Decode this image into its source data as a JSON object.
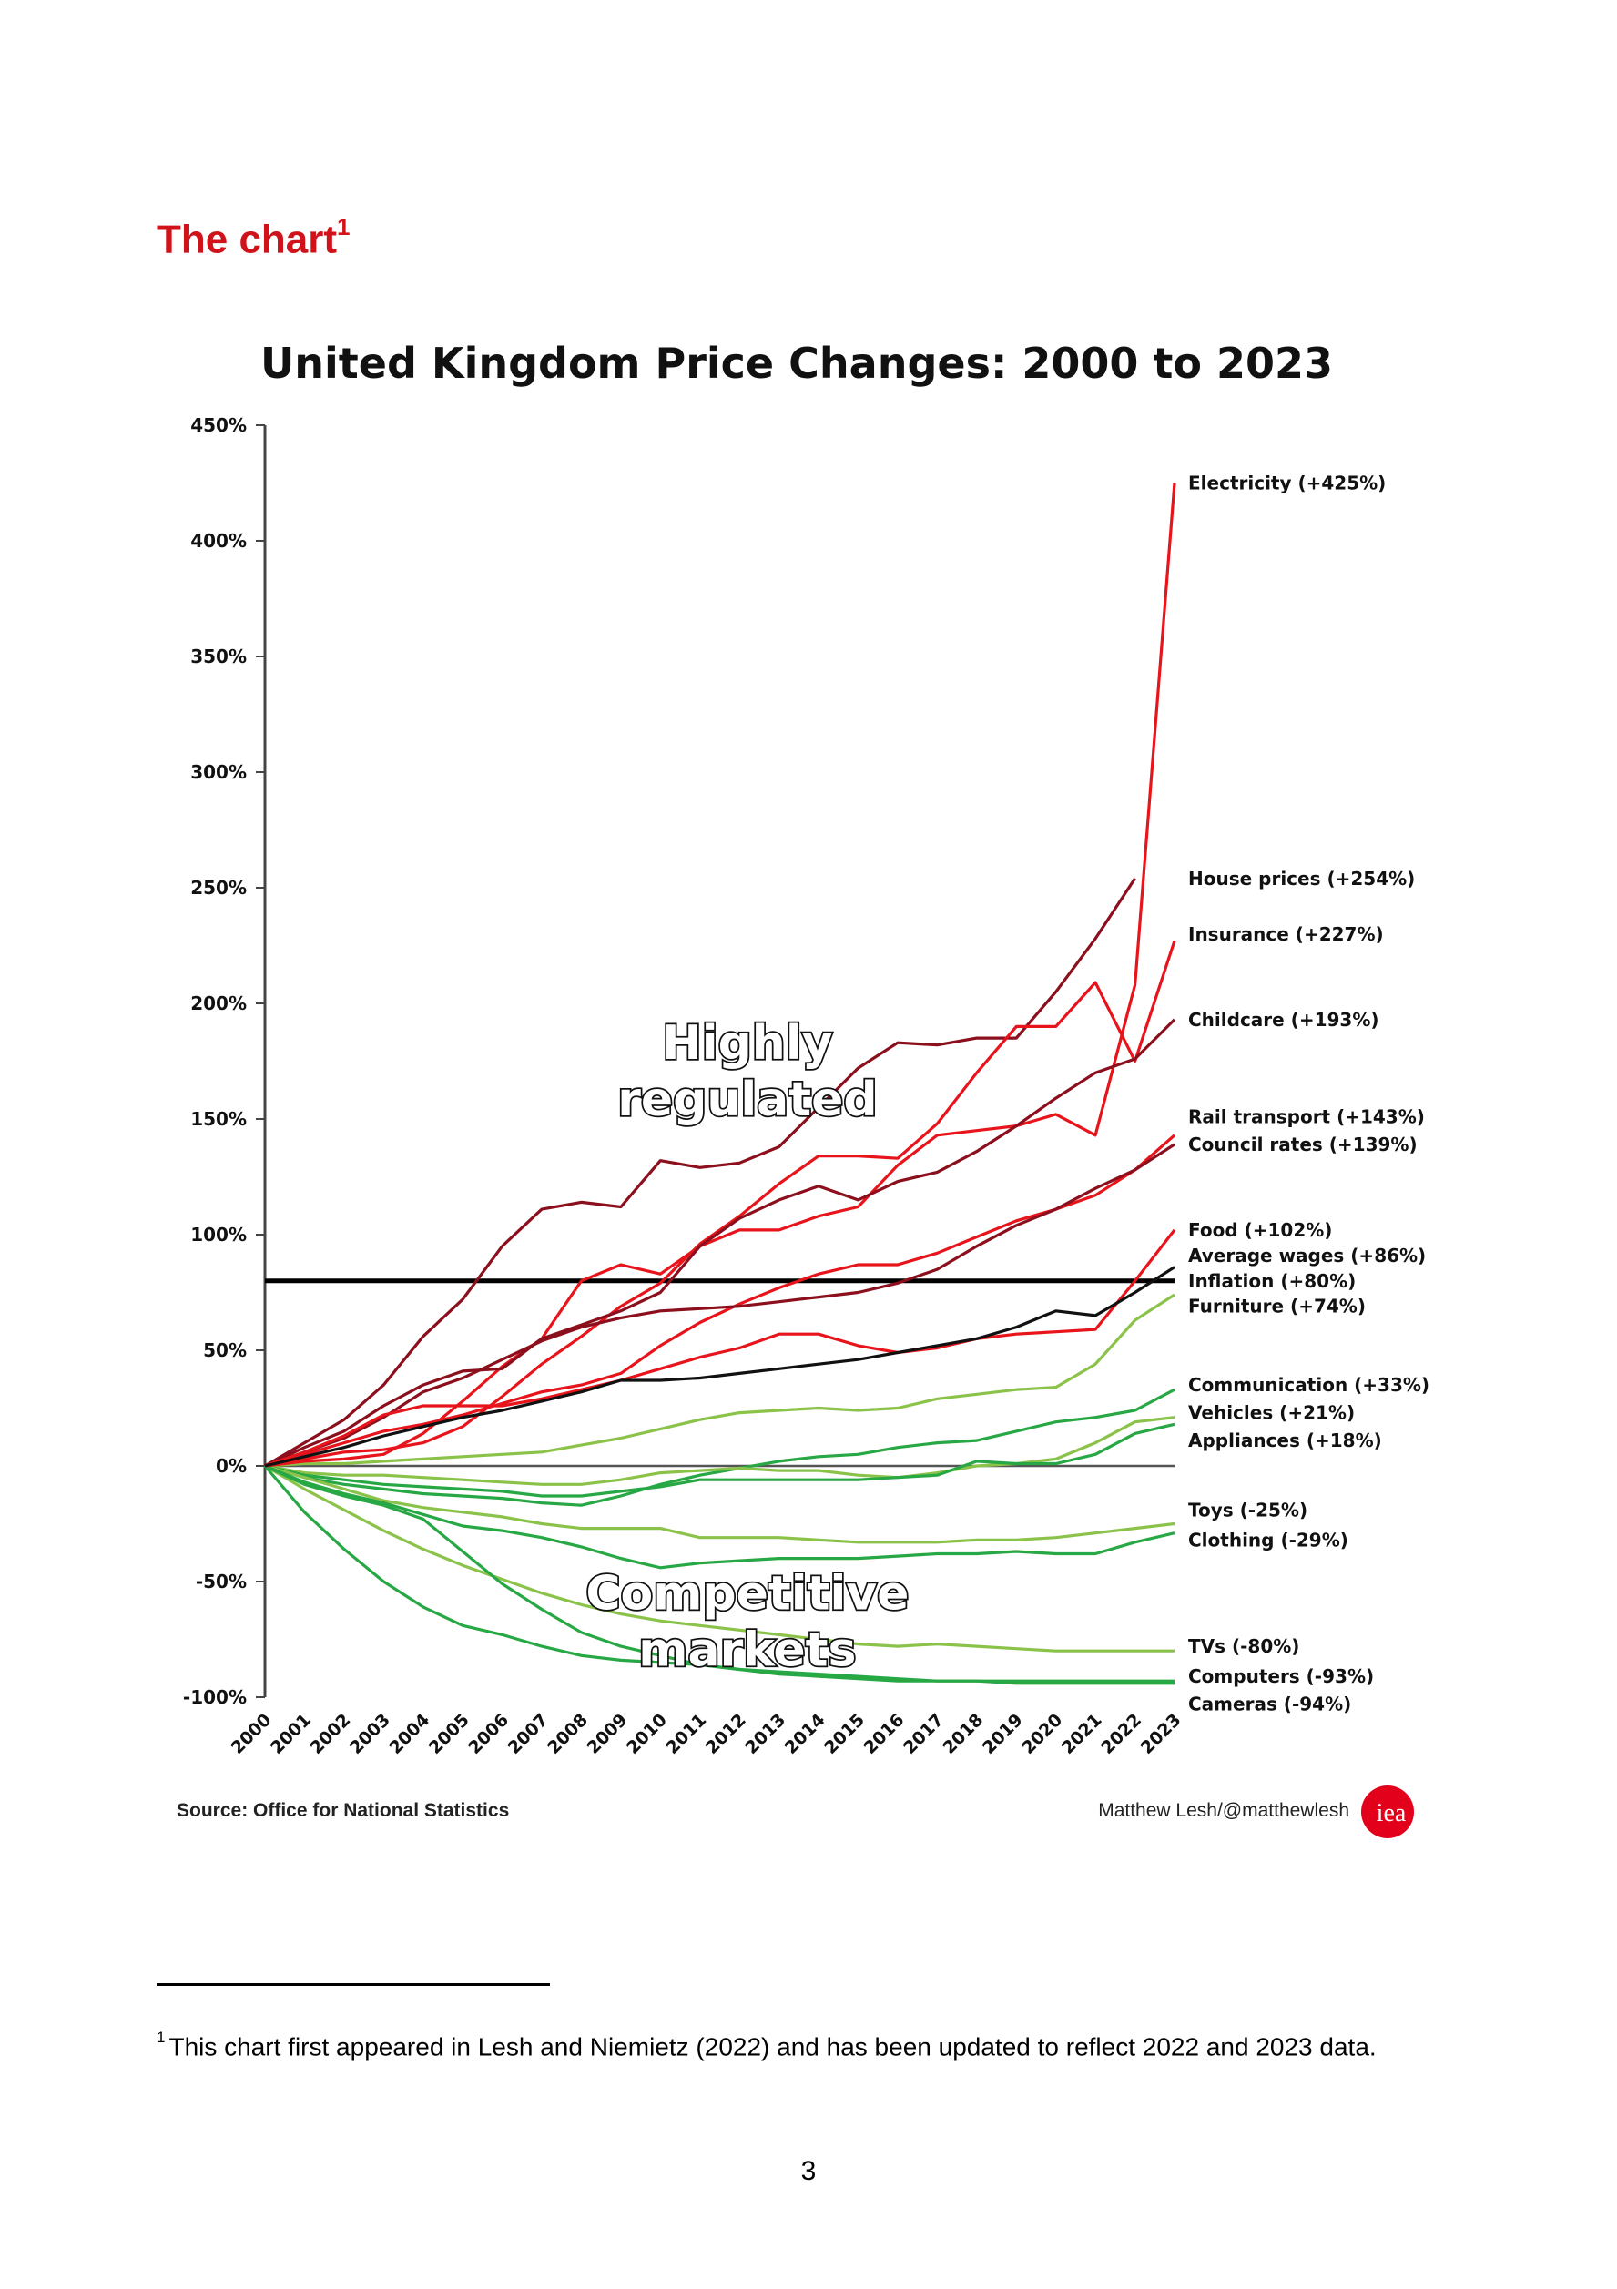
{
  "page": {
    "heading": "The chart",
    "heading_footnote_ref": "1",
    "footnote_ref": "1",
    "footnote_text": "This chart first appeared in Lesh and Niemietz (2022) and has been updated to reflect 2022 and 2023 data.",
    "page_number": "3"
  },
  "chart_data": {
    "type": "line",
    "title": "United Kingdom Price Changes: 2000 to 2023",
    "xlabel": "",
    "ylabel": "",
    "x": [
      2000,
      2001,
      2002,
      2003,
      2004,
      2005,
      2006,
      2007,
      2008,
      2009,
      2010,
      2011,
      2012,
      2013,
      2014,
      2015,
      2016,
      2017,
      2018,
      2019,
      2020,
      2021,
      2022,
      2023
    ],
    "x_tick_labels": [
      "2000",
      "2001",
      "2002",
      "2003",
      "2004",
      "2005",
      "2006",
      "2007",
      "2008",
      "2009",
      "2010",
      "2011",
      "2012",
      "2013",
      "2014",
      "2015",
      "2016",
      "2017",
      "2018",
      "2019",
      "2020",
      "2021",
      "2022",
      "2023"
    ],
    "ylim": [
      -100,
      450
    ],
    "y_ticks": [
      -100,
      -50,
      0,
      50,
      100,
      150,
      200,
      250,
      300,
      350,
      400,
      450
    ],
    "y_tick_labels": [
      "-100%",
      "-50%",
      "0%",
      "50%",
      "100%",
      "150%",
      "200%",
      "250%",
      "300%",
      "350%",
      "400%",
      "450%"
    ],
    "grid": false,
    "reference_lines": [
      {
        "name": "Inflation",
        "value": 80,
        "color": "#000000"
      },
      {
        "name": "Zero",
        "value": 0,
        "color": "#555555"
      }
    ],
    "annotations": [
      {
        "text_line1": "Highly",
        "text_line2": "regulated",
        "x": 2012.2,
        "y": 176
      },
      {
        "text_line1": "Competitive",
        "text_line2": "markets",
        "x": 2012.2,
        "y": -62
      }
    ],
    "source": "Source: Office for National Statistics",
    "credit": "Matthew Lesh/@matthewlesh",
    "logo_text": "iea",
    "logo_color": "#e3001b",
    "series": [
      {
        "name": "Electricity",
        "label": "Electricity (+425%)",
        "color": "#e8141c",
        "values": [
          0,
          2,
          3,
          5,
          14,
          28,
          43,
          55,
          80,
          87,
          83,
          95,
          102,
          102,
          108,
          112,
          130,
          143,
          145,
          147,
          152,
          143,
          208,
          425
        ]
      },
      {
        "name": "House prices",
        "label": "House prices (+254%)",
        "color": "#8b0f1c",
        "values": [
          0,
          10,
          20,
          35,
          56,
          72,
          95,
          111,
          114,
          112,
          132,
          129,
          131,
          138,
          155,
          172,
          183,
          182,
          185,
          185,
          205,
          228,
          254,
          null
        ]
      },
      {
        "name": "Insurance",
        "label": "Insurance (+227%)",
        "color": "#e8141c",
        "values": [
          0,
          3,
          6,
          7,
          10,
          17,
          30,
          44,
          56,
          69,
          79,
          96,
          108,
          122,
          134,
          134,
          133,
          148,
          170,
          190,
          190,
          209,
          175,
          227
        ]
      },
      {
        "name": "Childcare",
        "label": "Childcare (+193%)",
        "color": "#8b0f1c",
        "values": [
          0,
          8,
          15,
          26,
          35,
          41,
          42,
          55,
          61,
          67,
          75,
          95,
          107,
          115,
          121,
          115,
          123,
          127,
          136,
          147,
          159,
          170,
          176,
          193
        ]
      },
      {
        "name": "Rail transport",
        "label": "Rail transport (+143%)",
        "color": "#e8141c",
        "values": [
          0,
          5,
          10,
          15,
          18,
          22,
          27,
          32,
          35,
          40,
          52,
          62,
          70,
          77,
          83,
          87,
          87,
          92,
          99,
          106,
          111,
          117,
          128,
          143
        ]
      },
      {
        "name": "Council rates",
        "label": "Council rates (+139%)",
        "color": "#8b0f1c",
        "values": [
          0,
          6,
          12,
          21,
          32,
          38,
          46,
          54,
          60,
          64,
          67,
          68,
          69,
          71,
          73,
          75,
          79,
          85,
          95,
          104,
          111,
          120,
          128,
          139
        ]
      },
      {
        "name": "Food",
        "label": "Food (+102%)",
        "color": "#e8141c",
        "values": [
          0,
          6,
          13,
          22,
          26,
          26,
          26,
          29,
          33,
          37,
          42,
          47,
          51,
          57,
          57,
          52,
          49,
          51,
          55,
          57,
          58,
          59,
          80,
          102
        ]
      },
      {
        "name": "Average wages",
        "label": "Average wages (+86%)",
        "color": "#111111",
        "values": [
          0,
          4,
          8,
          13,
          17,
          21,
          24,
          28,
          32,
          37,
          37,
          38,
          40,
          42,
          44,
          46,
          49,
          52,
          55,
          60,
          67,
          65,
          75,
          86
        ]
      },
      {
        "name": "Furniture",
        "label": "Furniture (+74%)",
        "color": "#8bc34a",
        "values": [
          0,
          1,
          1,
          2,
          3,
          4,
          5,
          6,
          9,
          12,
          16,
          20,
          23,
          24,
          25,
          24,
          25,
          29,
          31,
          33,
          34,
          44,
          63,
          74
        ]
      },
      {
        "name": "Communication",
        "label": "Communication (+33%)",
        "color": "#27a844",
        "values": [
          0,
          -5,
          -8,
          -10,
          -12,
          -13,
          -14,
          -16,
          -17,
          -13,
          -8,
          -4,
          -1,
          2,
          4,
          5,
          8,
          10,
          11,
          15,
          19,
          21,
          24,
          33
        ]
      },
      {
        "name": "Vehicles",
        "label": "Vehicles (+21%)",
        "color": "#8bc34a",
        "values": [
          0,
          -3,
          -4,
          -4,
          -5,
          -6,
          -7,
          -8,
          -8,
          -6,
          -3,
          -2,
          -1,
          -2,
          -2,
          -4,
          -5,
          -3,
          0,
          1,
          3,
          10,
          19,
          21
        ]
      },
      {
        "name": "Appliances",
        "label": "Appliances (+18%)",
        "color": "#27a844",
        "values": [
          0,
          -4,
          -6,
          -8,
          -9,
          -10,
          -11,
          -13,
          -13,
          -11,
          -9,
          -6,
          -6,
          -6,
          -6,
          -6,
          -5,
          -4,
          2,
          1,
          1,
          5,
          14,
          18
        ]
      },
      {
        "name": "Toys",
        "label": "Toys (-25%)",
        "color": "#8bc34a",
        "values": [
          0,
          -5,
          -10,
          -15,
          -18,
          -20,
          -22,
          -25,
          -27,
          -27,
          -27,
          -31,
          -31,
          -31,
          -32,
          -33,
          -33,
          -33,
          -32,
          -32,
          -31,
          -29,
          -27,
          -25
        ]
      },
      {
        "name": "Clothing",
        "label": "Clothing (-29%)",
        "color": "#27a844",
        "values": [
          0,
          -7,
          -12,
          -16,
          -21,
          -26,
          -28,
          -31,
          -35,
          -40,
          -44,
          -42,
          -41,
          -40,
          -40,
          -40,
          -39,
          -38,
          -38,
          -37,
          -38,
          -38,
          -33,
          -29
        ]
      },
      {
        "name": "TVs",
        "label": "TVs (-80%)",
        "color": "#8bc34a",
        "values": [
          0,
          -10,
          -19,
          -28,
          -36,
          -43,
          -49,
          -55,
          -60,
          -64,
          -67,
          -69,
          -71,
          -73,
          -75,
          -77,
          -78,
          -77,
          -78,
          -79,
          -80,
          -80,
          -80,
          -80
        ]
      },
      {
        "name": "Computers",
        "label": "Computers (-93%)",
        "color": "#27a844",
        "values": [
          0,
          -8,
          -13,
          -17,
          -23,
          -37,
          -51,
          -62,
          -72,
          -78,
          -82,
          -86,
          -88,
          -90,
          -91,
          -92,
          -93,
          -93,
          -93,
          -93,
          -93,
          -93,
          -93,
          -93
        ]
      },
      {
        "name": "Cameras",
        "label": "Cameras (-94%)",
        "color": "#27a844",
        "values": [
          0,
          -20,
          -36,
          -50,
          -61,
          -69,
          -73,
          -78,
          -82,
          -84,
          -85,
          -86,
          -88,
          -89,
          -90,
          -91,
          -92,
          -93,
          -93,
          -94,
          -94,
          -94,
          -94,
          -94
        ]
      }
    ],
    "label_order_y": {
      "Electricity": 425,
      "House prices": 254,
      "Insurance": 230,
      "Childcare": 193,
      "Rail transport": 151,
      "Council rates": 139,
      "Food": 102,
      "Average wages": 91,
      "Inflation": 80,
      "Furniture": 69,
      "Communication": 35,
      "Vehicles": 23,
      "Appliances": 11,
      "Toys": -19,
      "Clothing": -32,
      "TVs": -78,
      "Computers": -91,
      "Cameras": -103
    },
    "inflation_label": "Inflation (+80%)"
  }
}
